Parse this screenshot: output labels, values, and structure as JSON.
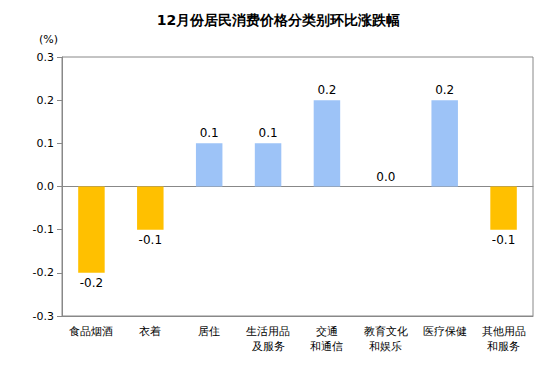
{
  "chart_data": {
    "type": "bar",
    "title": "12月份居民消费价格分类别环比涨跌幅",
    "ylabel": "(%)",
    "categories": [
      "食品烟酒",
      "衣着",
      "居住",
      "生活用品\n及服务",
      "交通\n和通信",
      "教育文化\n和娱乐",
      "医疗保健",
      "其他用品\n和服务"
    ],
    "values": [
      -0.2,
      -0.1,
      0.1,
      0.1,
      0.2,
      0.0,
      0.2,
      -0.1
    ],
    "value_labels": [
      "-0.2",
      "-0.1",
      "0.1",
      "0.1",
      "0.2",
      "0.0",
      "0.2",
      "-0.1"
    ],
    "colors": [
      "#FFC000",
      "#FFC000",
      "#9DC3F7",
      "#9DC3F7",
      "#9DC3F7",
      "#9DC3F7",
      "#9DC3F7",
      "#FFC000"
    ],
    "ylim": [
      -0.3,
      0.3
    ],
    "yticks": [
      -0.3,
      -0.2,
      -0.1,
      {
        "value": 0,
        "label": "0.0"
      },
      0.1,
      0.2,
      0.3
    ],
    "grid": false,
    "data_labels": true
  }
}
